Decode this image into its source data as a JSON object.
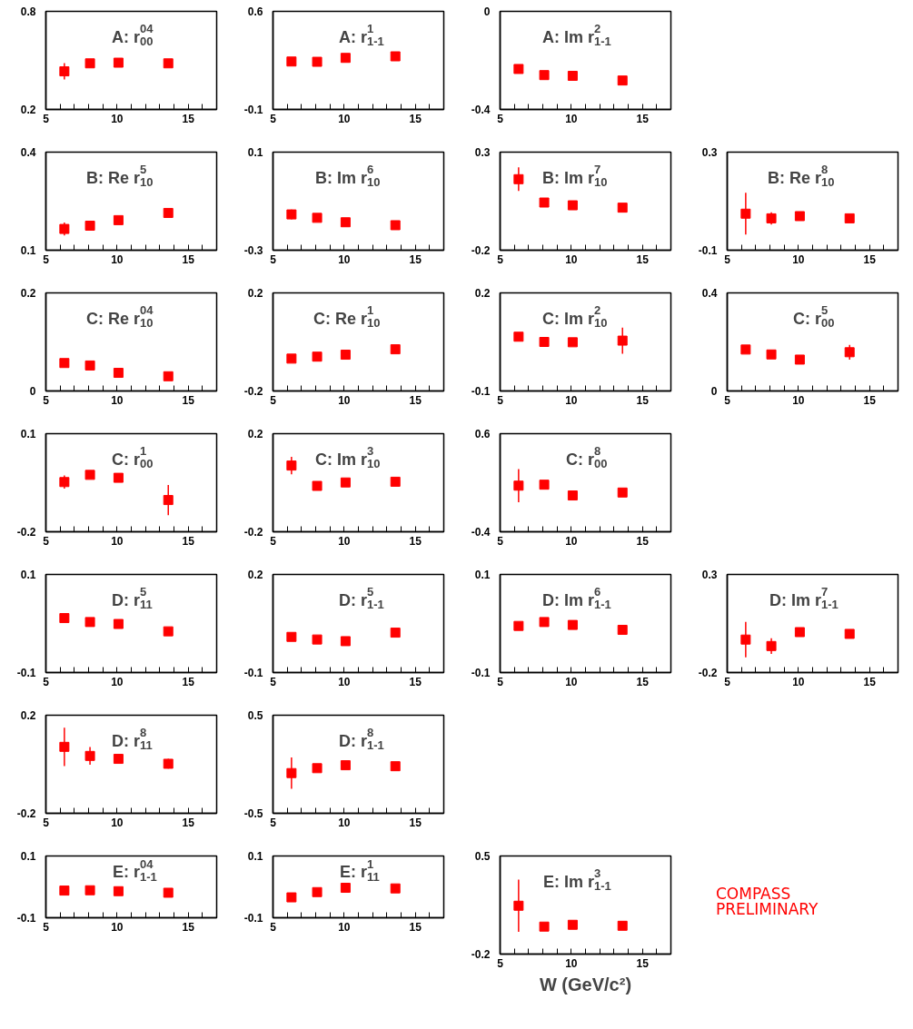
{
  "chart_data": [
    {
      "type": "scatter",
      "title": "A: r$^{04}$$_{00}$",
      "x": [
        6.3,
        8.1,
        10.1,
        13.6
      ],
      "values": [
        0.433,
        0.482,
        0.486,
        0.482
      ],
      "errors": [
        0.05,
        0.025,
        null,
        null
      ],
      "color": "#ff0000",
      "marker": "square",
      "xlim": [
        5,
        17
      ],
      "ylim": [
        0.2,
        0.8
      ],
      "yticks": [
        0.2,
        0.8
      ],
      "xticks": [
        5,
        {
          "value": 6,
          "label": null
        },
        {
          "value": 7,
          "label": null
        },
        {
          "value": 8,
          "label": null
        },
        {
          "value": 9,
          "label": null
        },
        10,
        {
          "value": 11,
          "label": null
        },
        {
          "value": 12,
          "label": null
        },
        {
          "value": 13,
          "label": null
        },
        {
          "value": 14,
          "label": null
        },
        15,
        {
          "value": 16,
          "label": null
        }
      ]
    },
    {
      "type": "scatter",
      "title": "A: r$^{1}$$_{1-1}$",
      "x": [
        6.3,
        8.1,
        10.1,
        13.6
      ],
      "values": [
        0.242,
        0.24,
        0.268,
        0.279
      ],
      "errors": [
        null,
        null,
        null,
        null
      ],
      "color": "#ff0000",
      "marker": "square",
      "xlim": [
        5,
        17
      ],
      "ylim": [
        -0.1,
        0.6
      ],
      "yticks": [
        -0.1,
        0.6
      ],
      "xticks": [
        5,
        {
          "value": 6,
          "label": null
        },
        {
          "value": 7,
          "label": null
        },
        {
          "value": 8,
          "label": null
        },
        {
          "value": 9,
          "label": null
        },
        10,
        {
          "value": 11,
          "label": null
        },
        {
          "value": 12,
          "label": null
        },
        {
          "value": 13,
          "label": null
        },
        {
          "value": 14,
          "label": null
        },
        15,
        {
          "value": 16,
          "label": null
        }
      ]
    },
    {
      "type": "scatter",
      "title": "A: Im r$^{2}$$_{1-1}$",
      "x": [
        6.3,
        8.1,
        10.1,
        13.6
      ],
      "values": [
        -0.235,
        -0.26,
        -0.263,
        -0.282
      ],
      "errors": [
        null,
        null,
        null,
        null
      ],
      "color": "#ff0000",
      "marker": "square",
      "xlim": [
        5,
        17
      ],
      "ylim": [
        -0.4,
        0
      ],
      "yticks": [
        -0.4,
        0
      ],
      "xticks": [
        5,
        {
          "value": 6,
          "label": null
        },
        {
          "value": 7,
          "label": null
        },
        {
          "value": 8,
          "label": null
        },
        {
          "value": 9,
          "label": null
        },
        10,
        {
          "value": 11,
          "label": null
        },
        {
          "value": 12,
          "label": null
        },
        {
          "value": 13,
          "label": null
        },
        {
          "value": 14,
          "label": null
        },
        15,
        {
          "value": 16,
          "label": null
        }
      ]
    },
    {
      "type": "scatter",
      "title": "B: Re r$^{5}$$_{10}$",
      "x": [
        6.3,
        8.1,
        10.1,
        13.6
      ],
      "values": [
        0.165,
        0.175,
        0.192,
        0.214
      ],
      "errors": [
        0.02,
        null,
        null,
        null
      ],
      "color": "#ff0000",
      "marker": "square",
      "xlim": [
        5,
        17
      ],
      "ylim": [
        0.1,
        0.4
      ],
      "yticks": [
        0.1,
        0.4
      ],
      "xticks": [
        5,
        {
          "value": 6,
          "label": null
        },
        {
          "value": 7,
          "label": null
        },
        {
          "value": 8,
          "label": null
        },
        {
          "value": 9,
          "label": null
        },
        10,
        {
          "value": 11,
          "label": null
        },
        {
          "value": 12,
          "label": null
        },
        {
          "value": 13,
          "label": null
        },
        {
          "value": 14,
          "label": null
        },
        15,
        {
          "value": 16,
          "label": null
        }
      ]
    },
    {
      "type": "scatter",
      "title": "B: Im r$^{6}$$_{10}$",
      "x": [
        6.3,
        8.1,
        10.1,
        13.6
      ],
      "values": [
        -0.154,
        -0.168,
        -0.186,
        -0.198
      ],
      "errors": [
        0.02,
        null,
        null,
        null
      ],
      "color": "#ff0000",
      "marker": "square",
      "xlim": [
        5,
        17
      ],
      "ylim": [
        -0.3,
        0.1
      ],
      "yticks": [
        -0.3,
        0.1
      ],
      "xticks": [
        5,
        {
          "value": 6,
          "label": null
        },
        {
          "value": 7,
          "label": null
        },
        {
          "value": 8,
          "label": null
        },
        {
          "value": 9,
          "label": null
        },
        10,
        {
          "value": 11,
          "label": null
        },
        {
          "value": 12,
          "label": null
        },
        {
          "value": 13,
          "label": null
        },
        {
          "value": 14,
          "label": null
        },
        15,
        {
          "value": 16,
          "label": null
        }
      ]
    },
    {
      "type": "scatter",
      "title": "B: Im r$^{7}$$_{10}$",
      "x": [
        6.3,
        8.1,
        10.1,
        13.6
      ],
      "values": [
        0.162,
        0.043,
        0.029,
        0.017
      ],
      "errors": [
        0.06,
        0.015,
        null,
        null
      ],
      "color": "#ff0000",
      "marker": "square",
      "xlim": [
        5,
        17
      ],
      "ylim": [
        -0.2,
        0.3
      ],
      "yticks": [
        -0.2,
        0.3
      ],
      "xticks": [
        5,
        {
          "value": 6,
          "label": null
        },
        {
          "value": 7,
          "label": null
        },
        {
          "value": 8,
          "label": null
        },
        {
          "value": 9,
          "label": null
        },
        10,
        {
          "value": 11,
          "label": null
        },
        {
          "value": 12,
          "label": null
        },
        {
          "value": 13,
          "label": null
        },
        {
          "value": 14,
          "label": null
        },
        15,
        {
          "value": 16,
          "label": null
        }
      ]
    },
    {
      "type": "scatter",
      "title": "B: Re r$^{8}$$_{10}$",
      "x": [
        6.3,
        8.1,
        10.1,
        13.6
      ],
      "values": [
        0.049,
        0.03,
        0.039,
        0.03
      ],
      "errors": [
        0.085,
        0.025,
        null,
        0.015
      ],
      "color": "#ff0000",
      "marker": "square",
      "xlim": [
        5,
        17
      ],
      "ylim": [
        -0.1,
        0.3
      ],
      "yticks": [
        -0.1,
        0.3
      ],
      "xticks": [
        5,
        {
          "value": 6,
          "label": null
        },
        {
          "value": 7,
          "label": null
        },
        {
          "value": 8,
          "label": null
        },
        {
          "value": 9,
          "label": null
        },
        10,
        {
          "value": 11,
          "label": null
        },
        {
          "value": 12,
          "label": null
        },
        {
          "value": 13,
          "label": null
        },
        {
          "value": 14,
          "label": null
        },
        15,
        {
          "value": 16,
          "label": null
        }
      ]
    },
    {
      "type": "scatter",
      "title": "C: Re r$^{04}$$_{10}$",
      "x": [
        6.3,
        8.1,
        10.1,
        13.6
      ],
      "values": [
        0.057,
        0.052,
        0.037,
        0.03
      ],
      "errors": [
        null,
        null,
        null,
        null
      ],
      "color": "#ff0000",
      "marker": "square",
      "xlim": [
        5,
        17
      ],
      "ylim": [
        0,
        0.2
      ],
      "yticks": [
        0,
        0.2
      ],
      "xticks": [
        5,
        {
          "value": 6,
          "label": null
        },
        {
          "value": 7,
          "label": null
        },
        {
          "value": 8,
          "label": null
        },
        {
          "value": 9,
          "label": null
        },
        10,
        {
          "value": 11,
          "label": null
        },
        {
          "value": 12,
          "label": null
        },
        {
          "value": 13,
          "label": null
        },
        {
          "value": 14,
          "label": null
        },
        15,
        {
          "value": 16,
          "label": null
        }
      ]
    },
    {
      "type": "scatter",
      "title": "C: Re r$^{1}$$_{10}$",
      "x": [
        6.3,
        8.1,
        10.1,
        13.6
      ],
      "values": [
        -0.068,
        -0.06,
        -0.052,
        -0.03
      ],
      "errors": [
        null,
        null,
        null,
        null
      ],
      "color": "#ff0000",
      "marker": "square",
      "xlim": [
        5,
        17
      ],
      "ylim": [
        -0.2,
        0.2
      ],
      "yticks": [
        -0.2,
        0.2
      ],
      "xticks": [
        5,
        {
          "value": 6,
          "label": null
        },
        {
          "value": 7,
          "label": null
        },
        {
          "value": 8,
          "label": null
        },
        {
          "value": 9,
          "label": null
        },
        10,
        {
          "value": 11,
          "label": null
        },
        {
          "value": 12,
          "label": null
        },
        {
          "value": 13,
          "label": null
        },
        {
          "value": 14,
          "label": null
        },
        15,
        {
          "value": 16,
          "label": null
        }
      ]
    },
    {
      "type": "scatter",
      "title": "C: Im r$^{2}$$_{10}$",
      "x": [
        6.3,
        8.1,
        10.1,
        13.6
      ],
      "values": [
        0.066,
        0.05,
        0.049,
        0.054
      ],
      "errors": [
        0.01,
        null,
        null,
        0.04
      ],
      "color": "#ff0000",
      "marker": "square",
      "xlim": [
        5,
        17
      ],
      "ylim": [
        -0.1,
        0.2
      ],
      "yticks": [
        -0.1,
        0.2
      ],
      "xticks": [
        5,
        {
          "value": 6,
          "label": null
        },
        {
          "value": 7,
          "label": null
        },
        {
          "value": 8,
          "label": null
        },
        {
          "value": 9,
          "label": null
        },
        10,
        {
          "value": 11,
          "label": null
        },
        {
          "value": 12,
          "label": null
        },
        {
          "value": 13,
          "label": null
        },
        {
          "value": 14,
          "label": null
        },
        15,
        {
          "value": 16,
          "label": null
        }
      ]
    },
    {
      "type": "scatter",
      "title": "C: r$^{5}$$_{00}$",
      "x": [
        6.3,
        8.1,
        10.1,
        13.6
      ],
      "values": [
        0.169,
        0.149,
        0.128,
        0.158
      ],
      "errors": [
        0.015,
        null,
        null,
        0.03
      ],
      "color": "#ff0000",
      "marker": "square",
      "xlim": [
        5,
        17
      ],
      "ylim": [
        0,
        0.4
      ],
      "yticks": [
        0,
        0.4
      ],
      "xticks": [
        5,
        {
          "value": 6,
          "label": null
        },
        {
          "value": 7,
          "label": null
        },
        {
          "value": 8,
          "label": null
        },
        {
          "value": 9,
          "label": null
        },
        10,
        {
          "value": 11,
          "label": null
        },
        {
          "value": 12,
          "label": null
        },
        {
          "value": 13,
          "label": null
        },
        {
          "value": 14,
          "label": null
        },
        15,
        {
          "value": 16,
          "label": null
        }
      ]
    },
    {
      "type": "scatter",
      "title": "C: r$^{1}$$_{00}$",
      "x": [
        6.3,
        8.1,
        10.1,
        13.6
      ],
      "values": [
        -0.048,
        -0.026,
        -0.035,
        -0.103
      ],
      "errors": [
        0.02,
        null,
        null,
        0.046
      ],
      "color": "#ff0000",
      "marker": "square",
      "xlim": [
        5,
        17
      ],
      "ylim": [
        -0.2,
        0.1
      ],
      "yticks": [
        -0.2,
        0.1
      ],
      "xticks": [
        5,
        {
          "value": 6,
          "label": null
        },
        {
          "value": 7,
          "label": null
        },
        {
          "value": 8,
          "label": null
        },
        {
          "value": 9,
          "label": null
        },
        10,
        {
          "value": 11,
          "label": null
        },
        {
          "value": 12,
          "label": null
        },
        {
          "value": 13,
          "label": null
        },
        {
          "value": 14,
          "label": null
        },
        15,
        {
          "value": 16,
          "label": null
        }
      ]
    },
    {
      "type": "scatter",
      "title": "C: Im r$^{3}$$_{10}$",
      "x": [
        6.3,
        8.1,
        10.1,
        13.6
      ],
      "values": [
        0.07,
        -0.013,
        0.001,
        0.004
      ],
      "errors": [
        0.036,
        null,
        null,
        null
      ],
      "color": "#ff0000",
      "marker": "square",
      "xlim": [
        5,
        17
      ],
      "ylim": [
        -0.2,
        0.2
      ],
      "yticks": [
        -0.2,
        0.2
      ],
      "xticks": [
        5,
        {
          "value": 6,
          "label": null
        },
        {
          "value": 7,
          "label": null
        },
        {
          "value": 8,
          "label": null
        },
        {
          "value": 9,
          "label": null
        },
        10,
        {
          "value": 11,
          "label": null
        },
        {
          "value": 12,
          "label": null
        },
        {
          "value": 13,
          "label": null
        },
        {
          "value": 14,
          "label": null
        },
        15,
        {
          "value": 16,
          "label": null
        }
      ]
    },
    {
      "type": "scatter",
      "title": "C: r$^{8}$$_{00}$",
      "x": [
        6.3,
        8.1,
        10.1,
        13.6
      ],
      "values": [
        0.07,
        0.08,
        -0.03,
        0.0
      ],
      "errors": [
        0.17,
        0.03,
        null,
        null
      ],
      "color": "#ff0000",
      "marker": "square",
      "xlim": [
        5,
        17
      ],
      "ylim": [
        -0.4,
        0.6
      ],
      "yticks": [
        -0.4,
        0.6
      ],
      "xticks": [
        5,
        {
          "value": 6,
          "label": null
        },
        {
          "value": 7,
          "label": null
        },
        {
          "value": 8,
          "label": null
        },
        {
          "value": 9,
          "label": null
        },
        10,
        {
          "value": 11,
          "label": null
        },
        {
          "value": 12,
          "label": null
        },
        {
          "value": 13,
          "label": null
        },
        {
          "value": 14,
          "label": null
        },
        15,
        {
          "value": 16,
          "label": null
        }
      ]
    },
    {
      "type": "scatter",
      "title": "D: r$^{5}$$_{11}$",
      "x": [
        6.3,
        8.1,
        10.1,
        13.6
      ],
      "values": [
        0.011,
        0.003,
        -0.001,
        -0.016
      ],
      "errors": [
        null,
        null,
        null,
        null
      ],
      "color": "#ff0000",
      "marker": "square",
      "xlim": [
        5,
        17
      ],
      "ylim": [
        -0.1,
        0.1
      ],
      "yticks": [
        -0.1,
        0.1
      ],
      "xticks": [
        5,
        {
          "value": 6,
          "label": null
        },
        {
          "value": 7,
          "label": null
        },
        {
          "value": 8,
          "label": null
        },
        {
          "value": 9,
          "label": null
        },
        10,
        {
          "value": 11,
          "label": null
        },
        {
          "value": 12,
          "label": null
        },
        {
          "value": 13,
          "label": null
        },
        {
          "value": 14,
          "label": null
        },
        15,
        {
          "value": 16,
          "label": null
        }
      ]
    },
    {
      "type": "scatter",
      "title": "D: r$^{5}$$_{1-1}$",
      "x": [
        6.3,
        8.1,
        10.1,
        13.6
      ],
      "values": [
        0.009,
        0.001,
        -0.004,
        0.022
      ],
      "errors": [
        null,
        null,
        null,
        null
      ],
      "color": "#ff0000",
      "marker": "square",
      "xlim": [
        5,
        17
      ],
      "ylim": [
        -0.1,
        0.2
      ],
      "yticks": [
        -0.1,
        0.2
      ],
      "xticks": [
        5,
        {
          "value": 6,
          "label": null
        },
        {
          "value": 7,
          "label": null
        },
        {
          "value": 8,
          "label": null
        },
        {
          "value": 9,
          "label": null
        },
        10,
        {
          "value": 11,
          "label": null
        },
        {
          "value": 12,
          "label": null
        },
        {
          "value": 13,
          "label": null
        },
        {
          "value": 14,
          "label": null
        },
        15,
        {
          "value": 16,
          "label": null
        }
      ]
    },
    {
      "type": "scatter",
      "title": "D: Im r$^{6}$$_{1-1}$",
      "x": [
        6.3,
        8.1,
        10.1,
        13.6
      ],
      "values": [
        -0.005,
        0.003,
        -0.003,
        -0.013
      ],
      "errors": [
        null,
        null,
        null,
        null
      ],
      "color": "#ff0000",
      "marker": "square",
      "xlim": [
        5,
        17
      ],
      "ylim": [
        -0.1,
        0.1
      ],
      "yticks": [
        -0.1,
        0.1
      ],
      "xticks": [
        5,
        {
          "value": 6,
          "label": null
        },
        {
          "value": 7,
          "label": null
        },
        {
          "value": 8,
          "label": null
        },
        {
          "value": 9,
          "label": null
        },
        10,
        {
          "value": 11,
          "label": null
        },
        {
          "value": 12,
          "label": null
        },
        {
          "value": 13,
          "label": null
        },
        {
          "value": 14,
          "label": null
        },
        15,
        {
          "value": 16,
          "label": null
        }
      ]
    },
    {
      "type": "scatter",
      "title": "D: Im r$^{7}$$_{1-1}$",
      "x": [
        6.3,
        8.1,
        10.1,
        13.6
      ],
      "values": [
        -0.032,
        -0.065,
        0.006,
        -0.003
      ],
      "errors": [
        0.09,
        0.04,
        0.015,
        0.015
      ],
      "color": "#ff0000",
      "marker": "square",
      "xlim": [
        5,
        17
      ],
      "ylim": [
        -0.2,
        0.3
      ],
      "yticks": [
        -0.2,
        0.3
      ],
      "xticks": [
        5,
        {
          "value": 6,
          "label": null
        },
        {
          "value": 7,
          "label": null
        },
        {
          "value": 8,
          "label": null
        },
        {
          "value": 9,
          "label": null
        },
        10,
        {
          "value": 11,
          "label": null
        },
        {
          "value": 12,
          "label": null
        },
        {
          "value": 13,
          "label": null
        },
        {
          "value": 14,
          "label": null
        },
        15,
        {
          "value": 16,
          "label": null
        }
      ]
    },
    {
      "type": "scatter",
      "title": "D: r$^{8}$$_{11}$",
      "x": [
        6.3,
        8.1,
        10.1,
        13.6
      ],
      "values": [
        0.071,
        0.034,
        0.022,
        0.002
      ],
      "errors": [
        0.078,
        0.036,
        null,
        0.02
      ],
      "color": "#ff0000",
      "marker": "square",
      "xlim": [
        5,
        17
      ],
      "ylim": [
        -0.2,
        0.2
      ],
      "yticks": [
        -0.2,
        0.2
      ],
      "xticks": [
        5,
        {
          "value": 6,
          "label": null
        },
        {
          "value": 7,
          "label": null
        },
        {
          "value": 8,
          "label": null
        },
        {
          "value": 9,
          "label": null
        },
        10,
        {
          "value": 11,
          "label": null
        },
        {
          "value": 12,
          "label": null
        },
        {
          "value": 13,
          "label": null
        },
        {
          "value": 14,
          "label": null
        },
        15,
        {
          "value": 16,
          "label": null
        }
      ]
    },
    {
      "type": "scatter",
      "title": "D: r$^{8}$$_{1-1}$",
      "x": [
        6.3,
        8.1,
        10.1,
        13.6
      ],
      "values": [
        -0.09,
        -0.04,
        -0.01,
        -0.02
      ],
      "errors": [
        0.16,
        null,
        null,
        null
      ],
      "color": "#ff0000",
      "marker": "square",
      "xlim": [
        5,
        17
      ],
      "ylim": [
        -0.5,
        0.5
      ],
      "yticks": [
        -0.5,
        0.5
      ],
      "xticks": [
        5,
        {
          "value": 6,
          "label": null
        },
        {
          "value": 7,
          "label": null
        },
        {
          "value": 8,
          "label": null
        },
        {
          "value": 9,
          "label": null
        },
        10,
        {
          "value": 11,
          "label": null
        },
        {
          "value": 12,
          "label": null
        },
        {
          "value": 13,
          "label": null
        },
        {
          "value": 14,
          "label": null
        },
        15,
        {
          "value": 16,
          "label": null
        }
      ]
    },
    {
      "type": "scatter",
      "title": "E: r$^{04}$$_{1-1}$",
      "x": [
        6.3,
        8.1,
        10.1,
        13.6
      ],
      "values": [
        -0.012,
        -0.011,
        -0.014,
        -0.019
      ],
      "errors": [
        null,
        null,
        null,
        null
      ],
      "color": "#ff0000",
      "marker": "square",
      "xlim": [
        5,
        17
      ],
      "ylim": [
        -0.1,
        0.1
      ],
      "yticks": [
        -0.1,
        0.1
      ],
      "xticks": [
        5,
        {
          "value": 6,
          "label": null
        },
        {
          "value": 7,
          "label": null
        },
        {
          "value": 8,
          "label": null
        },
        {
          "value": 9,
          "label": null
        },
        10,
        {
          "value": 11,
          "label": null
        },
        {
          "value": 12,
          "label": null
        },
        {
          "value": 13,
          "label": null
        },
        {
          "value": 14,
          "label": null
        },
        15,
        {
          "value": 16,
          "label": null
        }
      ]
    },
    {
      "type": "scatter",
      "title": "E: r$^{1}$$_{11}$",
      "x": [
        6.3,
        8.1,
        10.1,
        13.6
      ],
      "values": [
        -0.034,
        -0.017,
        -0.003,
        -0.005
      ],
      "errors": [
        null,
        null,
        null,
        null
      ],
      "color": "#ff0000",
      "marker": "square",
      "xlim": [
        5,
        17
      ],
      "ylim": [
        -0.1,
        0.1
      ],
      "yticks": [
        -0.1,
        0.1
      ],
      "xticks": [
        5,
        {
          "value": 6,
          "label": null
        },
        {
          "value": 7,
          "label": null
        },
        {
          "value": 8,
          "label": null
        },
        {
          "value": 9,
          "label": null
        },
        10,
        {
          "value": 11,
          "label": null
        },
        {
          "value": 12,
          "label": null
        },
        {
          "value": 13,
          "label": null
        },
        {
          "value": 14,
          "label": null
        },
        15,
        {
          "value": 16,
          "label": null
        }
      ]
    },
    {
      "type": "scatter",
      "title": "E: Im r$^{3}$$_{1-1}$",
      "x": [
        6.3,
        8.1,
        10.1,
        13.6
      ],
      "values": [
        0.145,
        -0.004,
        0.009,
        0.002
      ],
      "errors": [
        0.186,
        null,
        null,
        null
      ],
      "color": "#ff0000",
      "marker": "square",
      "xlim": [
        5,
        17
      ],
      "ylim": [
        -0.2,
        0.5
      ],
      "yticks": [
        -0.2,
        0.5
      ],
      "xlabel": "W (GeV/c²)",
      "annotations": [
        "COMPASS",
        "PRELIMINARY"
      ],
      "xticks": [
        5,
        {
          "value": 6,
          "label": null
        },
        {
          "value": 7,
          "label": null
        },
        {
          "value": 8,
          "label": null
        },
        {
          "value": 9,
          "label": null
        },
        10,
        {
          "value": 11,
          "label": null
        },
        {
          "value": 12,
          "label": null
        },
        {
          "value": 13,
          "label": null
        },
        {
          "value": 14,
          "label": null
        },
        15,
        {
          "value": 16,
          "label": null
        }
      ]
    }
  ]
}
